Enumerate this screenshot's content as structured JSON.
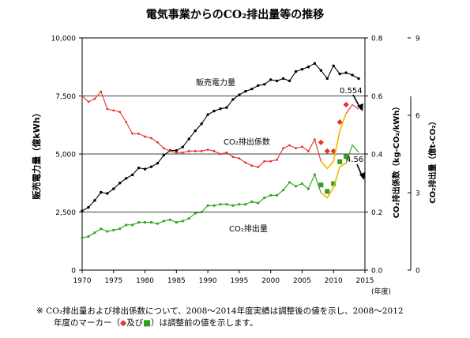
{
  "chart_data": {
    "type": "line",
    "title": "電気事業からのCO₂排出量等の推移",
    "xlabel": "(年度)",
    "x_ticks": [
      1970,
      1975,
      1980,
      1985,
      1990,
      1995,
      2000,
      2005,
      2010,
      2015
    ],
    "y_left": {
      "label": "販売電力量（億kWh）",
      "lim": [
        0,
        10000
      ],
      "ticks": [
        "0",
        "2,500",
        "5,000",
        "7,500",
        "10,000"
      ]
    },
    "y_mid": {
      "label": "CO₂排出係数（kg-CO₂/kWh）",
      "lim": [
        0,
        0.8
      ],
      "ticks": [
        "0.0",
        "0.2",
        "0.4",
        "0.6",
        "0.8"
      ]
    },
    "y_right": {
      "label": "CO₂排出量（億t-CO₂）",
      "lim": [
        0,
        9
      ],
      "ticks": [
        "0",
        "3",
        "6",
        "9"
      ]
    },
    "grid": "horizontal",
    "series": [
      {
        "name": "販売電力量",
        "color": "#000000",
        "axis": "left",
        "x": [
          1970,
          1971,
          1972,
          1973,
          1974,
          1975,
          1976,
          1977,
          1978,
          1979,
          1980,
          1981,
          1982,
          1983,
          1984,
          1985,
          1986,
          1987,
          1988,
          1989,
          1990,
          1991,
          1992,
          1993,
          1994,
          1995,
          1996,
          1997,
          1998,
          1999,
          2000,
          2001,
          2002,
          2003,
          2004,
          2005,
          2006,
          2007,
          2008,
          2009,
          2010,
          2011,
          2012,
          2013,
          2014
        ],
        "values": [
          2550,
          2700,
          3000,
          3350,
          3300,
          3500,
          3750,
          3950,
          4100,
          4400,
          4350,
          4450,
          4600,
          4950,
          5150,
          5150,
          5300,
          5650,
          6000,
          6300,
          6700,
          6850,
          6950,
          7000,
          7350,
          7550,
          7700,
          7800,
          7950,
          8000,
          8200,
          8150,
          8250,
          8150,
          8550,
          8650,
          8750,
          8900,
          8600,
          8250,
          8800,
          8450,
          8500,
          8400,
          8250
        ]
      },
      {
        "name": "CO₂排出係数",
        "color": "#e8322c",
        "axis": "mid",
        "x": [
          1970,
          1971,
          1972,
          1973,
          1974,
          1975,
          1976,
          1977,
          1978,
          1979,
          1980,
          1981,
          1982,
          1983,
          1984,
          1985,
          1986,
          1987,
          1988,
          1989,
          1990,
          1991,
          1992,
          1993,
          1994,
          1995,
          1996,
          1997,
          1998,
          1999,
          2000,
          2001,
          2002,
          2003,
          2004,
          2005,
          2006,
          2007,
          2008,
          2009,
          2010,
          2011,
          2012,
          2013,
          2014
        ],
        "values": [
          0.6,
          0.58,
          0.59,
          0.615,
          0.555,
          0.55,
          0.545,
          0.51,
          0.47,
          0.47,
          0.46,
          0.455,
          0.44,
          0.42,
          0.41,
          0.405,
          0.405,
          0.41,
          0.41,
          0.41,
          0.415,
          0.41,
          0.4,
          0.405,
          0.39,
          0.385,
          0.37,
          0.36,
          0.355,
          0.375,
          0.375,
          0.38,
          0.42,
          0.43,
          0.42,
          0.425,
          0.41,
          0.45,
          0.375,
          0.35,
          0.375,
          0.48,
          0.54,
          0.57,
          0.554
        ]
      },
      {
        "name": "CO₂排出量",
        "color": "#2ca01c",
        "axis": "right",
        "x": [
          1970,
          1971,
          1972,
          1973,
          1974,
          1975,
          1976,
          1977,
          1978,
          1979,
          1980,
          1981,
          1982,
          1983,
          1984,
          1985,
          1986,
          1987,
          1988,
          1989,
          1990,
          1991,
          1992,
          1993,
          1994,
          1995,
          1996,
          1997,
          1998,
          1999,
          2000,
          2001,
          2002,
          2003,
          2004,
          2005,
          2006,
          2007,
          2008,
          2009,
          2010,
          2011,
          2012,
          2013,
          2014
        ],
        "values": [
          1.25,
          1.3,
          1.45,
          1.6,
          1.5,
          1.55,
          1.6,
          1.75,
          1.75,
          1.85,
          1.85,
          1.85,
          1.8,
          1.9,
          1.95,
          1.85,
          1.9,
          2.0,
          2.2,
          2.25,
          2.5,
          2.5,
          2.55,
          2.55,
          2.5,
          2.55,
          2.55,
          2.65,
          2.6,
          2.8,
          2.9,
          2.9,
          3.1,
          3.4,
          3.25,
          3.35,
          3.15,
          3.7,
          3.0,
          2.8,
          3.2,
          4.0,
          4.15,
          4.85,
          4.56
        ]
      },
      {
        "name": "調整前 CO₂排出係数",
        "color": "#e8322c",
        "marker": "diamond",
        "axis": "mid",
        "x": [
          2008,
          2009,
          2010,
          2011,
          2012
        ],
        "values": [
          0.44,
          0.41,
          0.41,
          0.51,
          0.57
        ]
      },
      {
        "name": "調整前 CO₂排出量",
        "color": "#2ca01c",
        "marker": "square",
        "axis": "right",
        "x": [
          2008,
          2009,
          2010,
          2011,
          2012
        ],
        "values": [
          3.3,
          3.05,
          3.35,
          4.2,
          4.4
        ]
      },
      {
        "name": "調整後 2008-2012",
        "color": "#f5b800",
        "axis": "mid",
        "x": [
          2008,
          2009,
          2010,
          2011,
          2012
        ],
        "values": [
          0.375,
          0.35,
          0.375,
          0.48,
          0.54
        ]
      },
      {
        "name": "調整後 CO₂排出量 2008-2012",
        "color": "#f5b800",
        "axis": "right",
        "x": [
          2008,
          2009,
          2010,
          2011,
          2012
        ],
        "values": [
          3.0,
          2.8,
          3.2,
          4.0,
          4.15
        ]
      }
    ],
    "annotations": {
      "label_sales": "販売電力量",
      "label_coef": "CO₂排出係数",
      "label_emis": "CO₂排出量",
      "value_coef": "0.554",
      "value_emis": "4.56"
    }
  },
  "footnote": {
    "mark": "※",
    "line1": "CO₂排出量および排出係数について、2008～2014年度実績は調整後の値を示し、2008～2012",
    "line2_a": "年度のマーカー（",
    "line2_diamond": "◆",
    "line2_mid": "及び",
    "line2_square": "■",
    "line2_b": "）は調整前の値を示します。"
  }
}
